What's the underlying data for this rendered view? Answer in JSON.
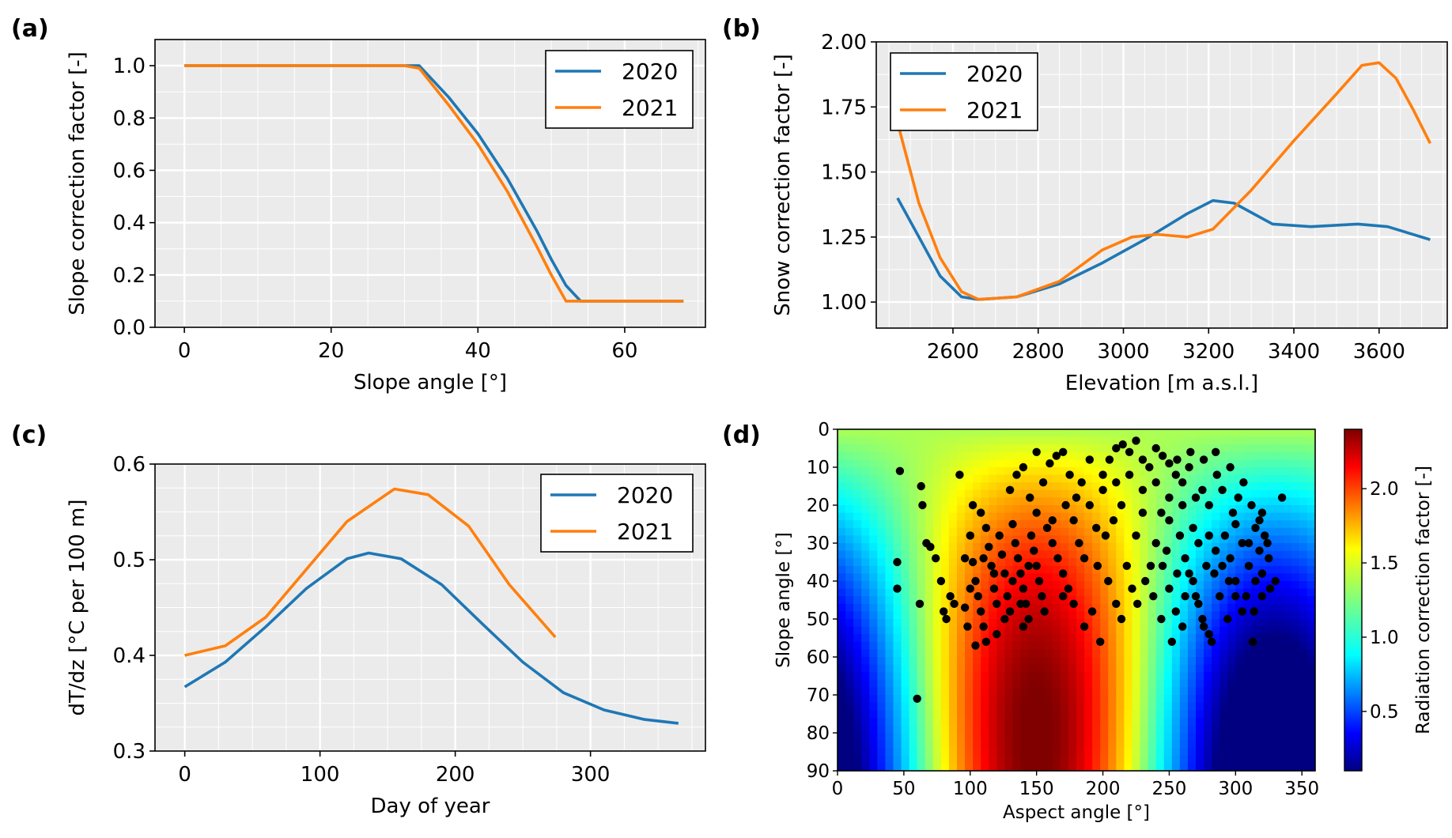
{
  "chart_data": [
    {
      "panel": "(a)",
      "type": "line",
      "title": "",
      "xlabel": "Slope angle [°]",
      "ylabel": "Slope correction factor [-]",
      "xlim": [
        -4,
        71
      ],
      "ylim": [
        0,
        1.1
      ],
      "xticks": [
        0,
        20,
        40,
        60
      ],
      "yticks": [
        0.0,
        0.2,
        0.4,
        0.6,
        0.8,
        1.0
      ],
      "ytick_labels": [
        "0.0",
        "0.2",
        "0.4",
        "0.6",
        "0.8",
        "1.0"
      ],
      "grid": true,
      "legend": "top-right",
      "series": [
        {
          "name": "2020",
          "color": "#1f77b4",
          "points": [
            [
              0,
              1.0
            ],
            [
              30,
              1.0
            ],
            [
              32,
              1.0
            ],
            [
              36,
              0.88
            ],
            [
              40,
              0.74
            ],
            [
              44,
              0.57
            ],
            [
              48,
              0.37
            ],
            [
              50,
              0.26
            ],
            [
              52,
              0.16
            ],
            [
              54,
              0.1
            ],
            [
              68,
              0.1
            ]
          ]
        },
        {
          "name": "2021",
          "color": "#ff7f0e",
          "points": [
            [
              0,
              1.0
            ],
            [
              30,
              1.0
            ],
            [
              32,
              0.99
            ],
            [
              36,
              0.85
            ],
            [
              40,
              0.7
            ],
            [
              44,
              0.52
            ],
            [
              48,
              0.31
            ],
            [
              50,
              0.2
            ],
            [
              52,
              0.1
            ],
            [
              68,
              0.1
            ]
          ]
        }
      ]
    },
    {
      "panel": "(b)",
      "type": "line",
      "title": "",
      "xlabel": "Elevation [m a.s.l.]",
      "ylabel": "Snow correction factor [-]",
      "xlim": [
        2420,
        3760
      ],
      "ylim": [
        0.9,
        2.0
      ],
      "xticks": [
        2600,
        2800,
        3000,
        3200,
        3400,
        3600
      ],
      "yticks": [
        1.0,
        1.25,
        1.5,
        1.75,
        2.0
      ],
      "ytick_labels": [
        "1.00",
        "1.25",
        "1.50",
        "1.75",
        "2.00"
      ],
      "grid": true,
      "legend": "top-left",
      "series": [
        {
          "name": "2020",
          "color": "#1f77b4",
          "points": [
            [
              2470,
              1.4
            ],
            [
              2520,
              1.25
            ],
            [
              2570,
              1.1
            ],
            [
              2620,
              1.02
            ],
            [
              2660,
              1.01
            ],
            [
              2750,
              1.02
            ],
            [
              2850,
              1.07
            ],
            [
              2950,
              1.15
            ],
            [
              3050,
              1.24
            ],
            [
              3150,
              1.34
            ],
            [
              3210,
              1.39
            ],
            [
              3260,
              1.38
            ],
            [
              3350,
              1.3
            ],
            [
              3440,
              1.29
            ],
            [
              3550,
              1.3
            ],
            [
              3620,
              1.29
            ],
            [
              3720,
              1.24
            ]
          ]
        },
        {
          "name": "2021",
          "color": "#ff7f0e",
          "points": [
            [
              2470,
              1.69
            ],
            [
              2520,
              1.38
            ],
            [
              2570,
              1.17
            ],
            [
              2620,
              1.04
            ],
            [
              2660,
              1.01
            ],
            [
              2750,
              1.02
            ],
            [
              2850,
              1.08
            ],
            [
              2950,
              1.2
            ],
            [
              3020,
              1.25
            ],
            [
              3080,
              1.26
            ],
            [
              3150,
              1.25
            ],
            [
              3210,
              1.28
            ],
            [
              3300,
              1.43
            ],
            [
              3400,
              1.62
            ],
            [
              3500,
              1.8
            ],
            [
              3560,
              1.91
            ],
            [
              3600,
              1.92
            ],
            [
              3640,
              1.86
            ],
            [
              3680,
              1.74
            ],
            [
              3720,
              1.61
            ]
          ]
        }
      ]
    },
    {
      "panel": "(c)",
      "type": "line",
      "title": "",
      "xlabel": "Day of year",
      "ylabel": "dT/dz [°C per 100 m]",
      "xlim": [
        -22,
        385
      ],
      "ylim": [
        0.3,
        0.6
      ],
      "xticks": [
        0,
        100,
        200,
        300
      ],
      "yticks": [
        0.3,
        0.4,
        0.5,
        0.6
      ],
      "ytick_labels": [
        "0.3",
        "0.4",
        "0.5",
        "0.6"
      ],
      "grid": true,
      "legend": "top-right",
      "series": [
        {
          "name": "2020",
          "color": "#1f77b4",
          "points": [
            [
              0,
              0.367
            ],
            [
              30,
              0.393
            ],
            [
              60,
              0.43
            ],
            [
              90,
              0.47
            ],
            [
              120,
              0.501
            ],
            [
              136,
              0.507
            ],
            [
              160,
              0.501
            ],
            [
              190,
              0.474
            ],
            [
              220,
              0.433
            ],
            [
              250,
              0.393
            ],
            [
              280,
              0.361
            ],
            [
              310,
              0.343
            ],
            [
              340,
              0.333
            ],
            [
              365,
              0.329
            ]
          ]
        },
        {
          "name": "2021",
          "color": "#ff7f0e",
          "points": [
            [
              0,
              0.4
            ],
            [
              30,
              0.41
            ],
            [
              60,
              0.44
            ],
            [
              90,
              0.49
            ],
            [
              120,
              0.54
            ],
            [
              155,
              0.574
            ],
            [
              180,
              0.568
            ],
            [
              210,
              0.535
            ],
            [
              240,
              0.474
            ],
            [
              274,
              0.419
            ]
          ]
        }
      ]
    },
    {
      "panel": "(d)",
      "type": "heatmap",
      "title": "",
      "xlabel": "Aspect angle [°]",
      "ylabel": "Slope angle [°]",
      "colorbar_label": "Radiation correction factor [-]",
      "xlim": [
        0,
        360
      ],
      "ylim": [
        90,
        0
      ],
      "xticks": [
        0,
        50,
        100,
        150,
        200,
        250,
        300,
        350
      ],
      "yticks": [
        0,
        10,
        20,
        30,
        40,
        50,
        60,
        70,
        80,
        90
      ],
      "colorbar_ticks": [
        0.5,
        1.0,
        1.5,
        2.0
      ],
      "colorbar_range": [
        0.1,
        2.4
      ],
      "colormap": "jet",
      "scatter_points": [
        [
          47,
          11
        ],
        [
          45,
          35
        ],
        [
          45,
          42
        ],
        [
          60,
          71
        ],
        [
          63,
          15
        ],
        [
          64,
          20
        ],
        [
          67,
          30
        ],
        [
          70,
          31
        ],
        [
          62,
          46
        ],
        [
          78,
          40
        ],
        [
          80,
          48
        ],
        [
          82,
          50
        ],
        [
          85,
          44
        ],
        [
          92,
          12
        ],
        [
          96,
          47
        ],
        [
          98,
          52
        ],
        [
          100,
          28
        ],
        [
          102,
          35
        ],
        [
          104,
          40
        ],
        [
          106,
          44
        ],
        [
          108,
          48
        ],
        [
          110,
          52
        ],
        [
          112,
          56
        ],
        [
          104,
          57
        ],
        [
          102,
          20
        ],
        [
          108,
          22
        ],
        [
          112,
          26
        ],
        [
          114,
          31
        ],
        [
          116,
          36
        ],
        [
          118,
          42
        ],
        [
          120,
          46
        ],
        [
          122,
          28
        ],
        [
          124,
          33
        ],
        [
          126,
          38
        ],
        [
          128,
          44
        ],
        [
          130,
          48
        ],
        [
          132,
          25
        ],
        [
          134,
          30
        ],
        [
          136,
          34
        ],
        [
          138,
          38
        ],
        [
          140,
          42
        ],
        [
          142,
          46
        ],
        [
          144,
          50
        ],
        [
          146,
          28
        ],
        [
          148,
          32
        ],
        [
          150,
          36
        ],
        [
          152,
          40
        ],
        [
          154,
          44
        ],
        [
          130,
          16
        ],
        [
          135,
          12
        ],
        [
          140,
          10
        ],
        [
          145,
          18
        ],
        [
          150,
          22
        ],
        [
          155,
          14
        ],
        [
          160,
          9
        ],
        [
          165,
          7
        ],
        [
          170,
          6
        ],
        [
          175,
          12
        ],
        [
          180,
          18
        ],
        [
          158,
          26
        ],
        [
          162,
          30
        ],
        [
          166,
          34
        ],
        [
          170,
          38
        ],
        [
          174,
          42
        ],
        [
          178,
          46
        ],
        [
          182,
          30
        ],
        [
          186,
          34
        ],
        [
          190,
          20
        ],
        [
          195,
          26
        ],
        [
          200,
          12
        ],
        [
          205,
          8
        ],
        [
          210,
          5
        ],
        [
          215,
          4
        ],
        [
          220,
          6
        ],
        [
          225,
          3
        ],
        [
          230,
          8
        ],
        [
          235,
          10
        ],
        [
          240,
          5
        ],
        [
          245,
          7
        ],
        [
          250,
          9
        ],
        [
          255,
          12
        ],
        [
          260,
          14
        ],
        [
          265,
          10
        ],
        [
          270,
          18
        ],
        [
          275,
          16
        ],
        [
          280,
          20
        ],
        [
          285,
          6
        ],
        [
          280,
          28
        ],
        [
          285,
          32
        ],
        [
          290,
          36
        ],
        [
          295,
          40
        ],
        [
          300,
          44
        ],
        [
          305,
          48
        ],
        [
          310,
          30
        ],
        [
          315,
          26
        ],
        [
          320,
          22
        ],
        [
          325,
          34
        ],
        [
          330,
          40
        ],
        [
          335,
          18
        ],
        [
          240,
          30
        ],
        [
          245,
          36
        ],
        [
          250,
          42
        ],
        [
          255,
          48
        ],
        [
          260,
          52
        ],
        [
          265,
          38
        ],
        [
          270,
          44
        ],
        [
          275,
          50
        ],
        [
          280,
          54
        ],
        [
          250,
          24
        ],
        [
          258,
          28
        ],
        [
          262,
          34
        ],
        [
          268,
          40
        ],
        [
          272,
          46
        ],
        [
          276,
          52
        ],
        [
          282,
          56
        ],
        [
          186,
          52
        ],
        [
          192,
          48
        ],
        [
          198,
          56
        ],
        [
          204,
          40
        ],
        [
          210,
          46
        ],
        [
          214,
          50
        ],
        [
          218,
          36
        ],
        [
          222,
          42
        ],
        [
          170,
          44
        ],
        [
          140,
          52
        ],
        [
          120,
          54
        ],
        [
          96,
          34
        ],
        [
          88,
          46
        ],
        [
          74,
          34
        ],
        [
          313,
          56
        ],
        [
          300,
          25
        ],
        [
          305,
          30
        ],
        [
          310,
          36
        ],
        [
          315,
          40
        ],
        [
          320,
          44
        ],
        [
          322,
          28
        ],
        [
          318,
          32
        ],
        [
          292,
          28
        ],
        [
          296,
          34
        ],
        [
          298,
          22
        ],
        [
          302,
          18
        ],
        [
          150,
          6
        ],
        [
          190,
          8
        ],
        [
          200,
          16
        ],
        [
          210,
          14
        ],
        [
          220,
          12
        ],
        [
          230,
          16
        ],
        [
          240,
          14
        ],
        [
          250,
          18
        ],
        [
          260,
          20
        ],
        [
          268,
          26
        ],
        [
          230,
          22
        ],
        [
          225,
          28
        ],
        [
          238,
          44
        ],
        [
          244,
          50
        ],
        [
          252,
          56
        ],
        [
          126,
          50
        ],
        [
          118,
          38
        ],
        [
          110,
          34
        ],
        [
          100,
          42
        ],
        [
          132,
          40
        ],
        [
          138,
          46
        ],
        [
          144,
          36
        ],
        [
          156,
          48
        ],
        [
          162,
          24
        ],
        [
          172,
          20
        ],
        [
          178,
          24
        ],
        [
          184,
          14
        ],
        [
          196,
          36
        ],
        [
          202,
          28
        ],
        [
          208,
          24
        ],
        [
          214,
          20
        ],
        [
          244,
          22
        ],
        [
          256,
          8
        ],
        [
          266,
          6
        ],
        [
          276,
          8
        ],
        [
          286,
          12
        ],
        [
          290,
          16
        ],
        [
          296,
          10
        ],
        [
          306,
          14
        ],
        [
          312,
          20
        ],
        [
          318,
          24
        ],
        [
          324,
          30
        ],
        [
          300,
          40
        ],
        [
          308,
          44
        ],
        [
          314,
          48
        ],
        [
          320,
          38
        ],
        [
          326,
          42
        ],
        [
          284,
          38
        ],
        [
          288,
          44
        ],
        [
          294,
          50
        ],
        [
          278,
          36
        ],
        [
          272,
          30
        ],
        [
          262,
          44
        ],
        [
          256,
          38
        ],
        [
          248,
          32
        ],
        [
          236,
          36
        ],
        [
          232,
          40
        ],
        [
          226,
          46
        ]
      ]
    }
  ]
}
